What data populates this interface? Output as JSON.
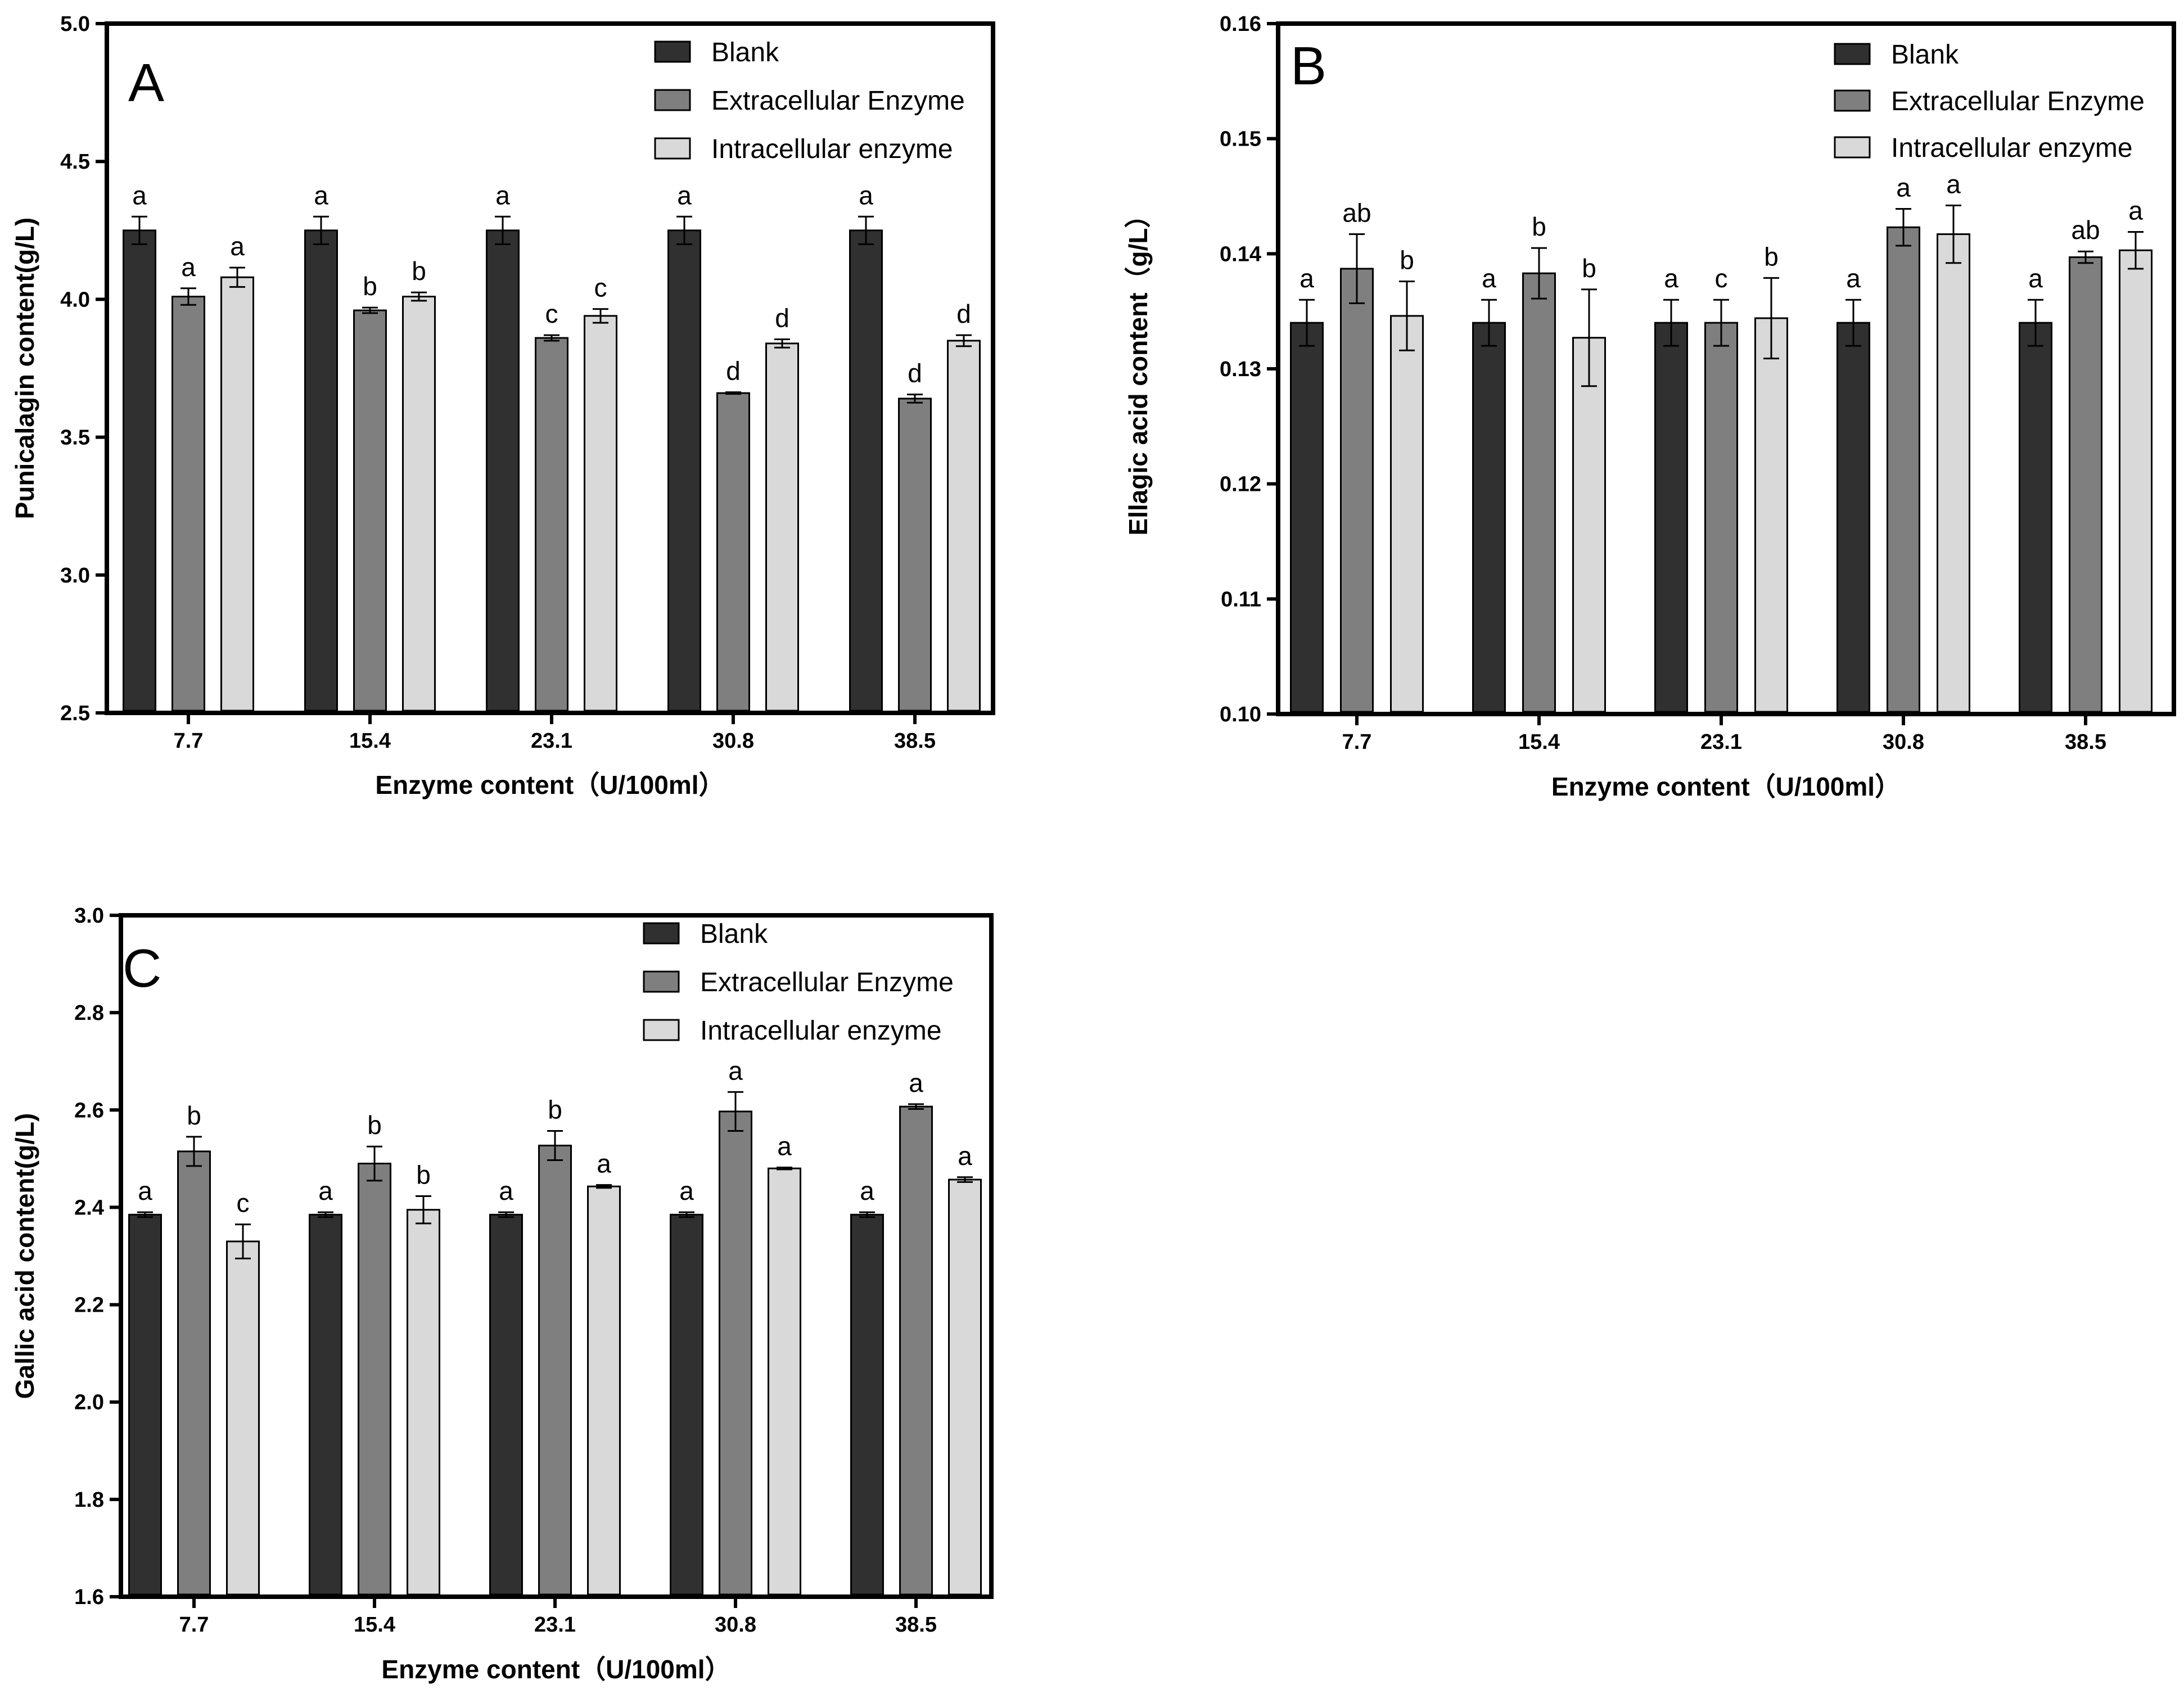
{
  "colors": {
    "Blank": "#303030",
    "Extracellular Enzyme": "#7f7f7f",
    "Intracellular enzyme": "#d9d9d9",
    "axis": "#000000"
  },
  "chart_data": [
    {
      "type": "bar",
      "panel_label": "A",
      "xlabel": "Enzyme content（U/100ml）",
      "ylabel": "Punicalagin content(g/L)",
      "ylim": [
        2.5,
        5.0
      ],
      "yticks": [
        "2.5",
        "3.0",
        "3.5",
        "4.0",
        "4.5",
        "5.0"
      ],
      "categories": [
        "7.7",
        "15.4",
        "23.1",
        "30.8",
        "38.5"
      ],
      "legend_position": "top-right",
      "series": [
        {
          "name": "Blank",
          "values": [
            4.25,
            4.25,
            4.25,
            4.25,
            4.25
          ],
          "errors": [
            0.05,
            0.05,
            0.05,
            0.05,
            0.05
          ],
          "labels": [
            "a",
            "a",
            "a",
            "a",
            "a"
          ]
        },
        {
          "name": "Extracellular Enzyme",
          "values": [
            4.01,
            3.96,
            3.86,
            3.66,
            3.64
          ],
          "errors": [
            0.03,
            0.01,
            0.01,
            0.003,
            0.015
          ],
          "labels": [
            "a",
            "b",
            "c",
            "d",
            "d"
          ]
        },
        {
          "name": "Intracellular enzyme",
          "values": [
            4.08,
            4.01,
            3.94,
            3.84,
            3.85
          ],
          "errors": [
            0.035,
            0.015,
            0.025,
            0.015,
            0.02
          ],
          "labels": [
            "a",
            "b",
            "c",
            "d",
            "d"
          ]
        }
      ]
    },
    {
      "type": "bar",
      "panel_label": "B",
      "xlabel": "Enzyme content（U/100ml）",
      "ylabel": "Ellagic acid content（g/L）",
      "ylim": [
        0.1,
        0.16
      ],
      "yticks": [
        "0.10",
        "0.11",
        "0.12",
        "0.13",
        "0.14",
        "0.15",
        "0.16"
      ],
      "categories": [
        "7.7",
        "15.4",
        "23.1",
        "30.8",
        "38.5"
      ],
      "legend_position": "top-right",
      "series": [
        {
          "name": "Blank",
          "values": [
            0.134,
            0.134,
            0.134,
            0.134,
            0.134
          ],
          "errors": [
            0.002,
            0.002,
            0.002,
            0.002,
            0.002
          ],
          "labels": [
            "a",
            "a",
            "a",
            "a",
            "a"
          ]
        },
        {
          "name": "Extracellular Enzyme",
          "values": [
            0.1387,
            0.1383,
            0.134,
            0.1423,
            0.1397
          ],
          "errors": [
            0.003,
            0.0022,
            0.002,
            0.0016,
            0.0005
          ],
          "labels": [
            "ab",
            "b",
            "c",
            "a",
            "ab"
          ]
        },
        {
          "name": "Intracellular enzyme",
          "values": [
            0.1346,
            0.1327,
            0.1344,
            0.1417,
            0.1403
          ],
          "errors": [
            0.003,
            0.0042,
            0.0035,
            0.0025,
            0.0016
          ],
          "labels": [
            "b",
            "b",
            "b",
            "a",
            "a"
          ]
        }
      ]
    },
    {
      "type": "bar",
      "panel_label": "C",
      "xlabel": "Enzyme content（U/100ml）",
      "ylabel": "Gallic acid content(g/L)",
      "ylim": [
        1.6,
        3.0
      ],
      "yticks": [
        "1.6",
        "1.8",
        "2.0",
        "2.2",
        "2.4",
        "2.6",
        "2.8",
        "3.0"
      ],
      "categories": [
        "7.7",
        "15.4",
        "23.1",
        "30.8",
        "38.5"
      ],
      "legend_position": "top-right",
      "series": [
        {
          "name": "Blank",
          "values": [
            2.385,
            2.385,
            2.385,
            2.385,
            2.385
          ],
          "errors": [
            0.005,
            0.005,
            0.005,
            0.005,
            0.005
          ],
          "labels": [
            "a",
            "a",
            "a",
            "a",
            "a"
          ]
        },
        {
          "name": "Extracellular Enzyme",
          "values": [
            2.515,
            2.49,
            2.527,
            2.597,
            2.607
          ],
          "errors": [
            0.03,
            0.035,
            0.03,
            0.04,
            0.005
          ],
          "labels": [
            "b",
            "b",
            "b",
            "a",
            "a"
          ]
        },
        {
          "name": "Intracellular enzyme",
          "values": [
            2.33,
            2.395,
            2.443,
            2.48,
            2.457
          ],
          "errors": [
            0.035,
            0.028,
            0.003,
            0.002,
            0.005
          ],
          "labels": [
            "c",
            "b",
            "a",
            "a",
            "a"
          ]
        }
      ]
    }
  ]
}
